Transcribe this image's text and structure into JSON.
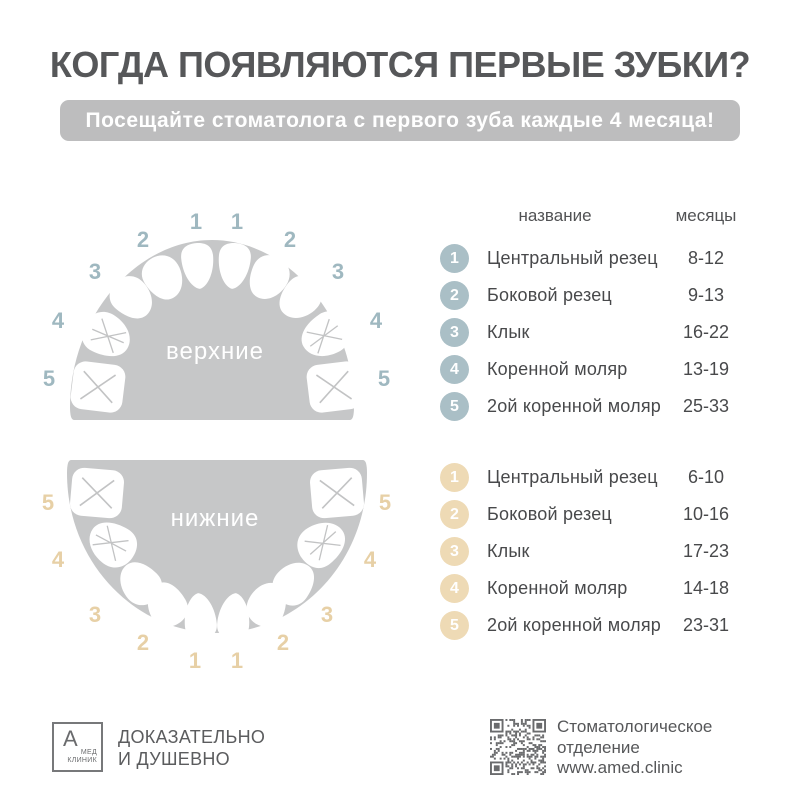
{
  "title": "КОГДА ПОЯВЛЯЮТСЯ ПЕРВЫЕ ЗУБКИ?",
  "banner": "Посещайте стоматолога с первого зуба каждые 4 месяца!",
  "table": {
    "header": {
      "name": "название",
      "months": "месяцы"
    },
    "upper_rows": [
      {
        "num": "1",
        "name": "Центральный резец",
        "months": "8-12"
      },
      {
        "num": "2",
        "name": "Боковой резец",
        "months": "9-13"
      },
      {
        "num": "3",
        "name": "Клык",
        "months": "16-22"
      },
      {
        "num": "4",
        "name": "Коренной моляр",
        "months": "13-19"
      },
      {
        "num": "5",
        "name": "2ой коренной моляр",
        "months": "25-33"
      }
    ],
    "lower_rows": [
      {
        "num": "1",
        "name": "Центральный резец",
        "months": "6-10"
      },
      {
        "num": "2",
        "name": "Боковой резец",
        "months": "10-16"
      },
      {
        "num": "3",
        "name": "Клык",
        "months": "17-23"
      },
      {
        "num": "4",
        "name": "Коренной моляр",
        "months": "14-18"
      },
      {
        "num": "5",
        "name": "2ой коренной моляр",
        "months": "23-31"
      }
    ]
  },
  "jaws": {
    "upper": {
      "label": "верхние",
      "numbers": [
        "1",
        "1",
        "2",
        "2",
        "3",
        "3",
        "4",
        "4",
        "5",
        "5"
      ]
    },
    "lower": {
      "label": "нижние",
      "numbers": [
        "1",
        "1",
        "2",
        "2",
        "3",
        "3",
        "4",
        "4",
        "5",
        "5"
      ]
    }
  },
  "colors": {
    "title_text": "#565759",
    "banner_bg": "#bdbdbe",
    "banner_text": "#ffffff",
    "jaw_gray": "#c6c7c8",
    "upper_accent": "#9fb8c0",
    "upper_badge": "#aabfc6",
    "lower_accent": "#e7d0a6",
    "lower_badge": "#eedab5",
    "table_text": "#48494b",
    "footer_gray": "#6a6b6d"
  },
  "footer": {
    "logo_letter": "А",
    "logo_sub_line1": "МЕД",
    "logo_sub_line2": "КЛИНИК",
    "slogan_line1": "ДОКАЗАТЕЛЬНО",
    "slogan_line2": "И ДУШЕВНО",
    "qr_caption_line1": "Стоматологическое",
    "qr_caption_line2": "отделение",
    "qr_caption_line3": "www.amed.clinic"
  }
}
